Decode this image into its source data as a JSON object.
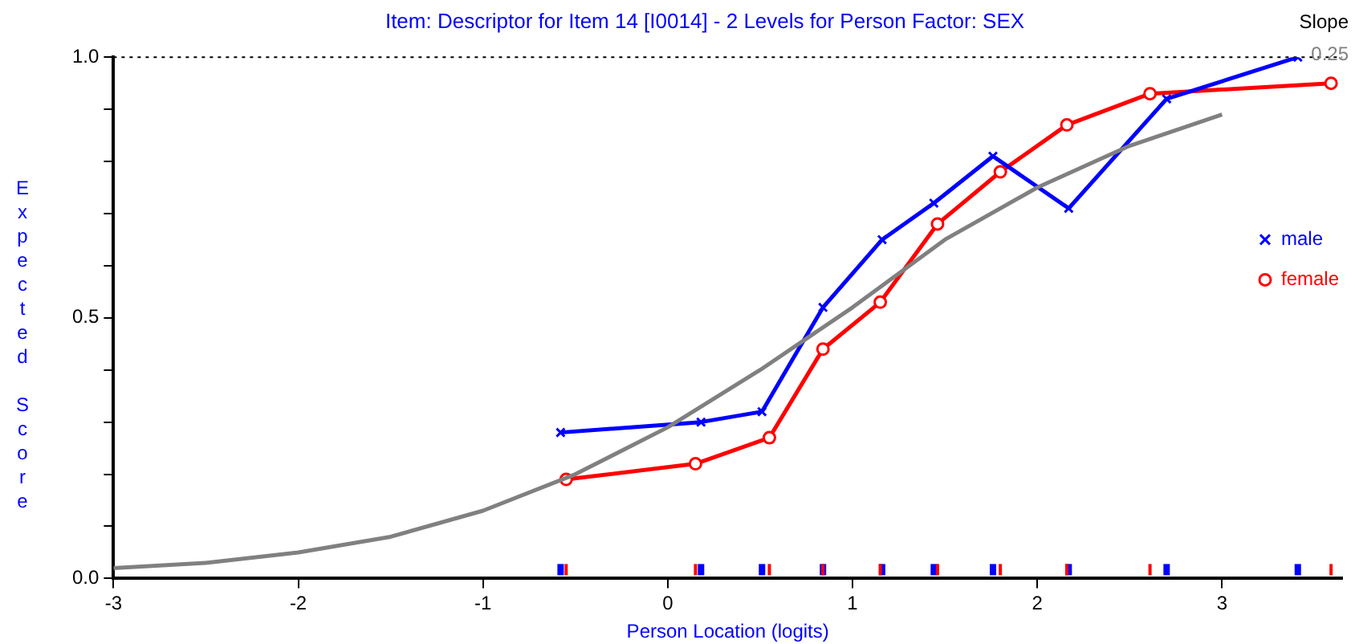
{
  "chart_data": {
    "type": "line",
    "title": "Item: Descriptor for Item 14 [I0014] - 2 Levels for Person Factor: SEX",
    "xlabel": "Person Location (logits)",
    "ylabel": "Expected Score",
    "xlim": [
      -3,
      3.65
    ],
    "xticks": [
      -3,
      -2,
      -1,
      0,
      1,
      2,
      3
    ],
    "ylim": [
      0,
      1
    ],
    "yticks": [
      {
        "value": 0,
        "label": "0.0"
      },
      {
        "value": 0.1,
        "label": null
      },
      {
        "value": 0.2,
        "label": null
      },
      {
        "value": 0.3,
        "label": null
      },
      {
        "value": 0.4,
        "label": null
      },
      {
        "value": 0.5,
        "label": "0.5"
      },
      {
        "value": 0.6,
        "label": null
      },
      {
        "value": 0.7,
        "label": null
      },
      {
        "value": 0.8,
        "label": null
      },
      {
        "value": 0.9,
        "label": null
      },
      {
        "value": 1,
        "label": "1.0"
      }
    ],
    "grid": false,
    "legend": "right",
    "line_style": "solid",
    "ref_lines": [
      {
        "axis": "y",
        "value": 1,
        "color": "#000000",
        "line_style": "dotted"
      }
    ],
    "annotations": [
      "Slope",
      "0.25"
    ],
    "series": [
      {
        "color": "#808080",
        "marker": "none",
        "x": [
          -3,
          -2.5,
          -2,
          -1.5,
          -1,
          -0.5,
          0,
          0.5,
          1,
          1.5,
          2,
          2.5,
          3
        ],
        "values": [
          0.02,
          0.03,
          0.05,
          0.08,
          0.13,
          0.2,
          0.29,
          0.4,
          0.52,
          0.65,
          0.75,
          0.83,
          0.89
        ]
      },
      {
        "name": "male",
        "color": "#0000ff",
        "marker": "cross",
        "x": [
          -0.58,
          0.18,
          0.51,
          0.84,
          1.16,
          1.44,
          1.76,
          2.17,
          2.7,
          3.41
        ],
        "values": [
          0.28,
          0.3,
          0.32,
          0.52,
          0.65,
          0.72,
          0.81,
          0.71,
          0.92,
          1.0
        ]
      },
      {
        "name": "female",
        "color": "#ff0000",
        "marker": "circle",
        "x": [
          -0.55,
          0.15,
          0.55,
          0.84,
          1.15,
          1.46,
          1.8,
          2.16,
          2.61,
          3.59
        ],
        "values": [
          0.19,
          0.22,
          0.27,
          0.44,
          0.53,
          0.68,
          0.78,
          0.87,
          0.93,
          0.95
        ]
      }
    ]
  }
}
